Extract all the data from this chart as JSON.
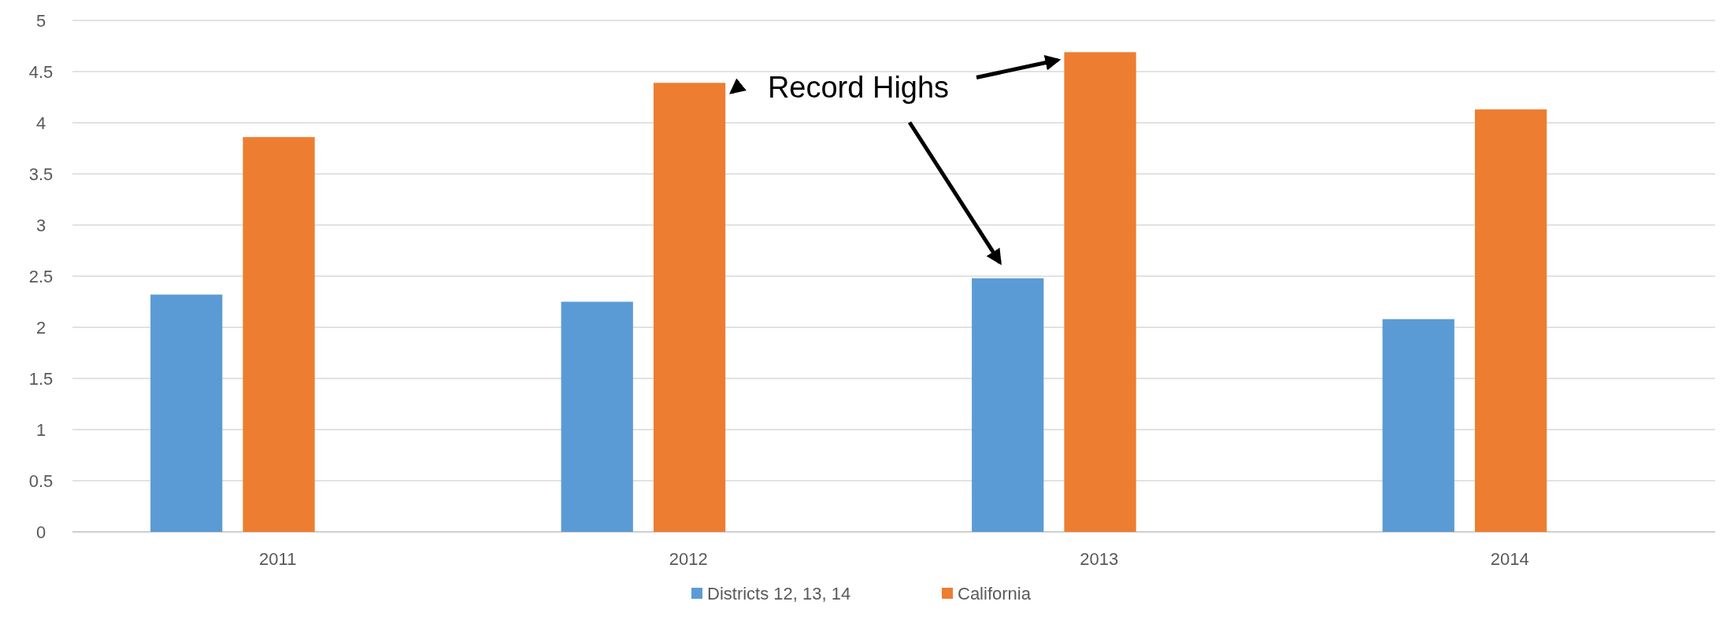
{
  "chart_data": {
    "type": "bar",
    "categories": [
      "2011",
      "2012",
      "2013",
      "2014"
    ],
    "series": [
      {
        "name": "Districts 12, 13, 14",
        "color": "#5b9bd5",
        "values": [
          2.32,
          2.25,
          2.48,
          2.08
        ]
      },
      {
        "name": "California",
        "color": "#ed7d31",
        "values": [
          3.86,
          4.39,
          4.69,
          4.13
        ]
      }
    ],
    "ylim": [
      0,
      5
    ],
    "yticks": [
      0,
      0.5,
      1,
      1.5,
      2,
      2.5,
      3,
      3.5,
      4,
      4.5,
      5
    ],
    "grid": "y",
    "legend": "bottom",
    "annotations": [
      "Record Highs"
    ]
  }
}
